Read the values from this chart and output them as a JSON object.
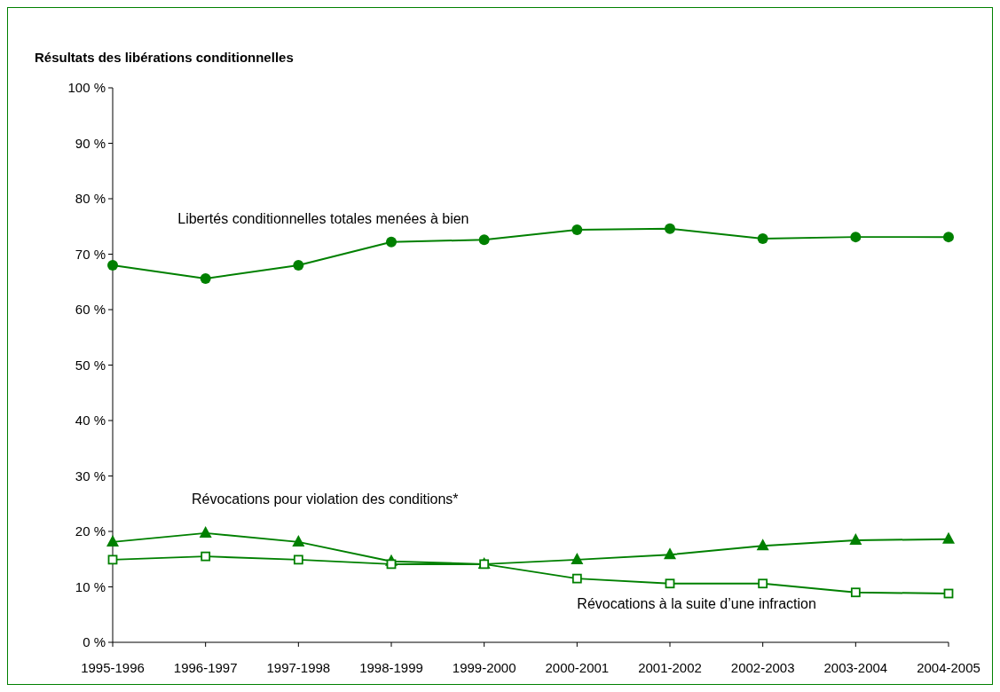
{
  "chart_data": {
    "type": "line",
    "title": "Résultats des libérations conditionnelles",
    "categories": [
      "1995-1996",
      "1996-1997",
      "1997-1998",
      "1998-1999",
      "1999-2000",
      "2000-2001",
      "2001-2002",
      "2002-2003",
      "2003-2004",
      "2004-2005"
    ],
    "ylim": [
      0,
      100
    ],
    "yticks": [
      {
        "value": 0,
        "label": "0 %"
      },
      {
        "value": 10,
        "label": "10 %"
      },
      {
        "value": 20,
        "label": "20 %"
      },
      {
        "value": 30,
        "label": "30 %"
      },
      {
        "value": 40,
        "label": "40 %"
      },
      {
        "value": 50,
        "label": "50 %"
      },
      {
        "value": 60,
        "label": "60 %"
      },
      {
        "value": 70,
        "label": "70 %"
      },
      {
        "value": 80,
        "label": "80 %"
      },
      {
        "value": 90,
        "label": "90 %"
      },
      {
        "value": 100,
        "label": "100 %"
      }
    ],
    "grid": false,
    "series": [
      {
        "name": "Libertés conditionnelles totales menées à bien",
        "color": "#008000",
        "marker": "circle",
        "values": [
          68,
          65.6,
          68,
          72.2,
          72.6,
          74.4,
          74.6,
          72.8,
          73.1,
          73.1
        ]
      },
      {
        "name": "Révocations pour violation des conditions*",
        "color": "#008000",
        "marker": "triangle",
        "values": [
          18.1,
          19.7,
          18.1,
          14.6,
          14.1,
          14.9,
          15.8,
          17.4,
          18.4,
          18.6
        ]
      },
      {
        "name": "Révocations à la suite d’une infraction",
        "color": "#008000",
        "marker": "square",
        "values": [
          14.9,
          15.5,
          14.9,
          14.1,
          14.1,
          11.5,
          10.6,
          10.6,
          9,
          8.8
        ]
      }
    ]
  }
}
